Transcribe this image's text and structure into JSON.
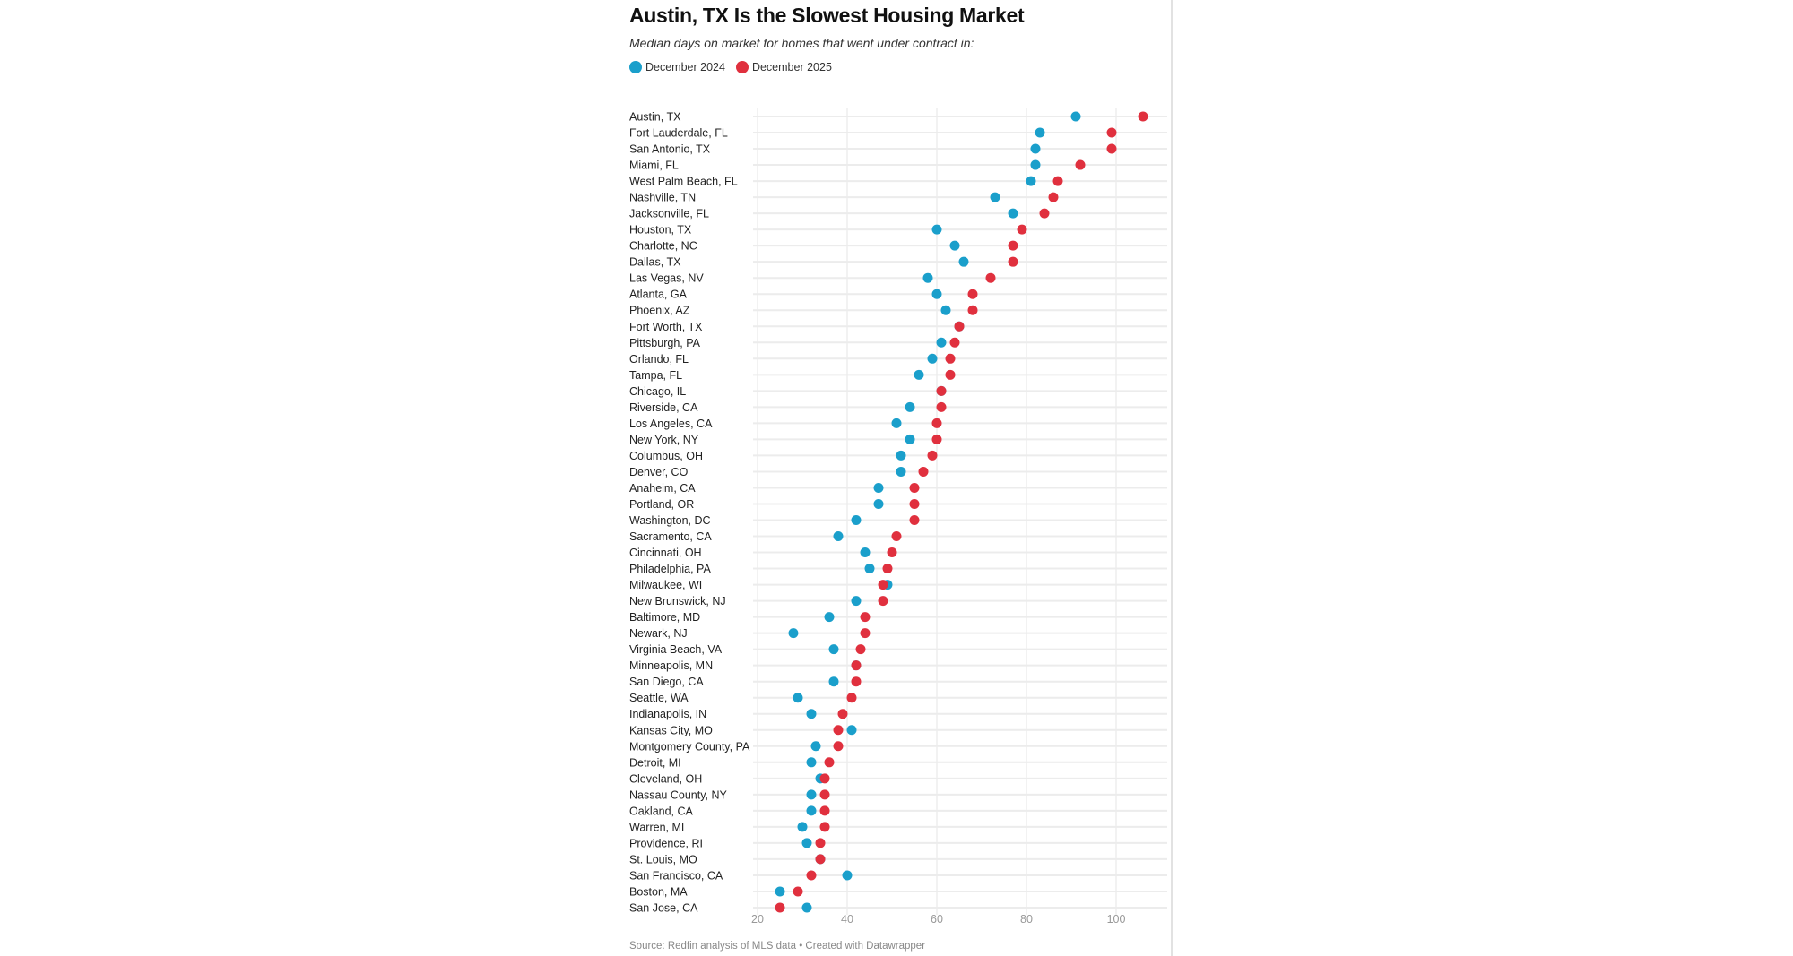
{
  "chart_data": {
    "type": "dot",
    "title": "Austin, TX Is the Slowest Housing Market",
    "subtitle": "Median days on market for homes that went under contract in:",
    "source": "Source: Redfin analysis of MLS data • Created with Datawrapper",
    "xlim": [
      20,
      110
    ],
    "xticks": [
      20,
      40,
      60,
      80,
      100
    ],
    "grid": true,
    "legend_position": "top-left",
    "series": [
      {
        "name": "December 2024",
        "color": "#1a9fcb"
      },
      {
        "name": "December 2025",
        "color": "#e0303e"
      }
    ],
    "categories": [
      "Austin, TX",
      "Fort Lauderdale, FL",
      "San Antonio, TX",
      "Miami, FL",
      "West Palm Beach, FL",
      "Nashville, TN",
      "Jacksonville, FL",
      "Houston, TX",
      "Charlotte, NC",
      "Dallas, TX",
      "Las Vegas, NV",
      "Atlanta, GA",
      "Phoenix, AZ",
      "Fort Worth, TX",
      "Pittsburgh, PA",
      "Orlando, FL",
      "Tampa, FL",
      "Chicago, IL",
      "Riverside, CA",
      "Los Angeles, CA",
      "New York, NY",
      "Columbus, OH",
      "Denver, CO",
      "Anaheim, CA",
      "Portland, OR",
      "Washington, DC",
      "Sacramento, CA",
      "Cincinnati, OH",
      "Philadelphia, PA",
      "Milwaukee, WI",
      "New Brunswick, NJ",
      "Baltimore, MD",
      "Newark, NJ",
      "Virginia Beach, VA",
      "Minneapolis, MN",
      "San Diego, CA",
      "Seattle, WA",
      "Indianapolis, IN",
      "Kansas City, MO",
      "Montgomery County, PA",
      "Detroit, MI",
      "Cleveland, OH",
      "Nassau County, NY",
      "Oakland, CA",
      "Warren, MI",
      "Providence, RI",
      "St. Louis, MO",
      "San Francisco, CA",
      "Boston, MA",
      "San Jose, CA"
    ],
    "dec2024": [
      91,
      83,
      82,
      82,
      81,
      73,
      77,
      60,
      64,
      66,
      58,
      60,
      62,
      65,
      61,
      59,
      56,
      61,
      54,
      51,
      54,
      52,
      52,
      47,
      47,
      42,
      38,
      44,
      45,
      49,
      42,
      36,
      28,
      37,
      42,
      37,
      29,
      32,
      41,
      33,
      32,
      34,
      32,
      32,
      30,
      31,
      34,
      40,
      25,
      31
    ],
    "dec2025": [
      106,
      99,
      99,
      92,
      87,
      86,
      84,
      79,
      77,
      77,
      72,
      68,
      68,
      65,
      64,
      63,
      63,
      61,
      61,
      60,
      60,
      59,
      57,
      55,
      55,
      55,
      51,
      50,
      49,
      48,
      48,
      44,
      44,
      43,
      42,
      42,
      41,
      39,
      38,
      38,
      36,
      35,
      35,
      35,
      35,
      34,
      34,
      32,
      29,
      25
    ]
  }
}
